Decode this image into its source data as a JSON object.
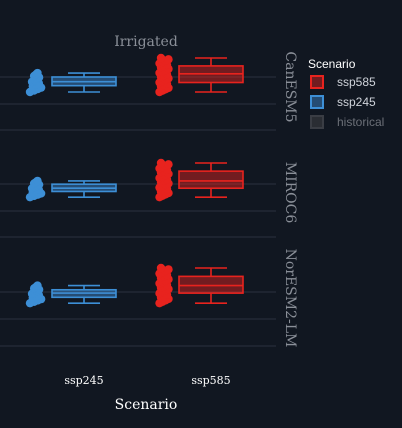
{
  "chart_data": {
    "type": "box",
    "title": "Irrigated",
    "xlabel": "Scenario",
    "categories": [
      "ssp245",
      "ssp585"
    ],
    "facets": [
      "CanESM5",
      "MIROC6",
      "NorESM2-LM"
    ],
    "legend": {
      "title": "Scenario",
      "position": "right",
      "entries": [
        {
          "name": "ssp585",
          "color": "#e8231e",
          "active": true
        },
        {
          "name": "ssp245",
          "color": "#3d8fd6",
          "active": true
        },
        {
          "name": "historical",
          "color": "#5a5e66",
          "active": false
        }
      ]
    },
    "yaxis": {
      "tick_labels_shown": false,
      "grid": true
    },
    "panels": [
      {
        "facet": "CanESM5",
        "boxes": [
          {
            "category": "ssp245",
            "min": 0.2,
            "q1": 1.0,
            "median": 1.5,
            "q3": 2.1,
            "max": 2.6
          },
          {
            "category": "ssp585",
            "min": 0.2,
            "q1": 1.4,
            "median": 2.5,
            "q3": 3.5,
            "max": 4.5
          }
        ]
      },
      {
        "facet": "MIROC6",
        "boxes": [
          {
            "category": "ssp245",
            "min": 0.3,
            "q1": 1.0,
            "median": 1.4,
            "q3": 1.9,
            "max": 2.3
          },
          {
            "category": "ssp585",
            "min": 0.3,
            "q1": 1.4,
            "median": 2.3,
            "q3": 3.5,
            "max": 4.5
          }
        ]
      },
      {
        "facet": "NorESM2-LM",
        "boxes": [
          {
            "category": "ssp245",
            "min": 0.3,
            "q1": 1.0,
            "median": 1.5,
            "q3": 1.9,
            "max": 2.4
          },
          {
            "category": "ssp585",
            "min": 0.3,
            "q1": 1.5,
            "median": 2.4,
            "q3": 3.5,
            "max": 4.5
          }
        ]
      }
    ],
    "colors": {
      "ssp245": "#3d8fd6",
      "ssp585": "#e8231e",
      "background": "#111721",
      "grid": "#2c3240"
    }
  }
}
